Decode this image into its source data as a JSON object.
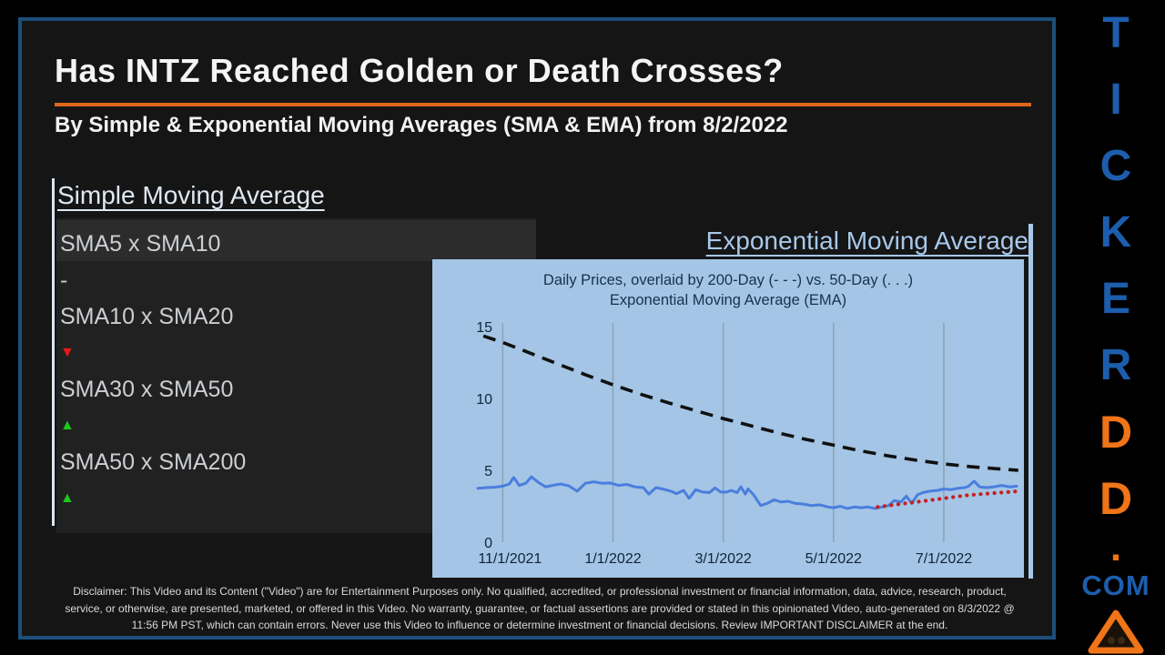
{
  "page": {
    "title": "Has INTZ Reached Golden or Death Crosses?",
    "subtitle": "By Simple & Exponential Moving Averages (SMA & EMA) from 8/2/2022"
  },
  "sma_section": {
    "heading": "Simple Moving Average",
    "items": [
      {
        "label": "SMA5 x SMA10",
        "signal": "neutral",
        "marker_glyph": "-",
        "marker_color": "#c8c8c8"
      },
      {
        "label": "SMA10 x SMA20",
        "signal": "down",
        "marker_glyph": "▼",
        "marker_color": "#e81818"
      },
      {
        "label": "SMA30 x SMA50",
        "signal": "up",
        "marker_glyph": "▲",
        "marker_color": "#1ec81e"
      },
      {
        "label": "SMA50 x SMA200",
        "signal": "up",
        "marker_glyph": "▲",
        "marker_color": "#1ec81e"
      }
    ]
  },
  "ema_section": {
    "heading": "Exponential Moving Average"
  },
  "chart_data": {
    "type": "line",
    "title_line1": "Daily Prices, overlaid by 200-Day (- - -) vs. 50-Day (. . .)",
    "title_line2": "Exponential Moving Average (EMA)",
    "background": "#a4c5e5",
    "grid": "vertical-only",
    "gridline_color": "#8da4ba",
    "x_unit": "months since 11/1/2021",
    "x_tick_months": [
      0,
      2,
      4,
      6,
      8
    ],
    "x_tick_labels": [
      "11/1/2021",
      "1/1/2022",
      "3/1/2022",
      "5/1/2022",
      "7/1/2022"
    ],
    "xlim": [
      -0.55,
      9.42
    ],
    "y_ticks": [
      0,
      5,
      10,
      15
    ],
    "ylim": [
      0,
      15
    ],
    "tick_color": "#10243a",
    "series": [
      {
        "name": "Daily Prices",
        "style": "solid",
        "color": "#4a7ede",
        "points": [
          [
            -0.45,
            3.75
          ],
          [
            -0.3,
            3.8
          ],
          [
            -0.15,
            3.82
          ],
          [
            0,
            3.9
          ],
          [
            0.12,
            4.05
          ],
          [
            0.2,
            4.5
          ],
          [
            0.3,
            3.95
          ],
          [
            0.42,
            4.1
          ],
          [
            0.52,
            4.55
          ],
          [
            0.65,
            4.15
          ],
          [
            0.78,
            3.85
          ],
          [
            0.9,
            3.95
          ],
          [
            1.05,
            4.05
          ],
          [
            1.2,
            3.92
          ],
          [
            1.35,
            3.55
          ],
          [
            1.5,
            4.1
          ],
          [
            1.65,
            4.2
          ],
          [
            1.8,
            4.1
          ],
          [
            1.95,
            4.12
          ],
          [
            2.1,
            3.95
          ],
          [
            2.25,
            4.02
          ],
          [
            2.4,
            3.85
          ],
          [
            2.55,
            3.8
          ],
          [
            2.65,
            3.35
          ],
          [
            2.78,
            3.8
          ],
          [
            2.9,
            3.7
          ],
          [
            3.05,
            3.55
          ],
          [
            3.15,
            3.38
          ],
          [
            3.28,
            3.6
          ],
          [
            3.38,
            3.05
          ],
          [
            3.5,
            3.65
          ],
          [
            3.62,
            3.5
          ],
          [
            3.75,
            3.45
          ],
          [
            3.85,
            3.78
          ],
          [
            3.95,
            3.5
          ],
          [
            4.05,
            3.48
          ],
          [
            4.15,
            3.6
          ],
          [
            4.25,
            3.45
          ],
          [
            4.32,
            3.85
          ],
          [
            4.4,
            3.35
          ],
          [
            4.45,
            3.7
          ],
          [
            4.55,
            3.3
          ],
          [
            4.68,
            2.55
          ],
          [
            4.8,
            2.7
          ],
          [
            4.92,
            2.95
          ],
          [
            5.05,
            2.8
          ],
          [
            5.18,
            2.85
          ],
          [
            5.3,
            2.7
          ],
          [
            5.45,
            2.65
          ],
          [
            5.6,
            2.55
          ],
          [
            5.75,
            2.6
          ],
          [
            5.9,
            2.45
          ],
          [
            6.0,
            2.4
          ],
          [
            6.12,
            2.5
          ],
          [
            6.25,
            2.35
          ],
          [
            6.38,
            2.45
          ],
          [
            6.5,
            2.4
          ],
          [
            6.62,
            2.45
          ],
          [
            6.75,
            2.35
          ],
          [
            6.88,
            2.45
          ],
          [
            7.0,
            2.55
          ],
          [
            7.1,
            2.9
          ],
          [
            7.22,
            2.8
          ],
          [
            7.32,
            3.2
          ],
          [
            7.42,
            2.7
          ],
          [
            7.52,
            3.3
          ],
          [
            7.62,
            3.45
          ],
          [
            7.75,
            3.55
          ],
          [
            7.88,
            3.6
          ],
          [
            8.0,
            3.7
          ],
          [
            8.12,
            3.65
          ],
          [
            8.25,
            3.75
          ],
          [
            8.38,
            3.8
          ],
          [
            8.45,
            3.9
          ],
          [
            8.55,
            4.25
          ],
          [
            8.65,
            3.85
          ],
          [
            8.78,
            3.8
          ],
          [
            8.9,
            3.85
          ],
          [
            9.05,
            3.95
          ],
          [
            9.2,
            3.85
          ],
          [
            9.32,
            3.9
          ]
        ]
      },
      {
        "name": "200-Day EMA",
        "style": "dashed",
        "color": "#101010",
        "points": [
          [
            -0.35,
            14.35
          ],
          [
            0,
            13.9
          ],
          [
            0.5,
            13.15
          ],
          [
            1,
            12.4
          ],
          [
            1.5,
            11.65
          ],
          [
            2,
            10.95
          ],
          [
            2.5,
            10.3
          ],
          [
            3,
            9.7
          ],
          [
            3.5,
            9.15
          ],
          [
            4,
            8.6
          ],
          [
            4.5,
            8.1
          ],
          [
            5,
            7.6
          ],
          [
            5.5,
            7.15
          ],
          [
            6,
            6.75
          ],
          [
            6.5,
            6.35
          ],
          [
            7,
            6.0
          ],
          [
            7.5,
            5.7
          ],
          [
            8,
            5.45
          ],
          [
            8.5,
            5.25
          ],
          [
            9.0,
            5.1
          ],
          [
            9.35,
            5.0
          ]
        ]
      },
      {
        "name": "50-Day EMA",
        "style": "dotted",
        "color": "#c42020",
        "points": [
          [
            6.8,
            2.45
          ],
          [
            7.0,
            2.55
          ],
          [
            7.2,
            2.65
          ],
          [
            7.4,
            2.75
          ],
          [
            7.6,
            2.85
          ],
          [
            7.8,
            2.95
          ],
          [
            8.0,
            3.05
          ],
          [
            8.2,
            3.15
          ],
          [
            8.4,
            3.25
          ],
          [
            8.6,
            3.32
          ],
          [
            8.8,
            3.38
          ],
          [
            9.0,
            3.44
          ],
          [
            9.2,
            3.5
          ],
          [
            9.37,
            3.55
          ]
        ]
      }
    ]
  },
  "branding": {
    "stack": [
      {
        "text": "T",
        "kind": "blue-letter"
      },
      {
        "text": "I",
        "kind": "blue-letter"
      },
      {
        "text": "C",
        "kind": "blue-letter"
      },
      {
        "text": "K",
        "kind": "blue-letter"
      },
      {
        "text": "E",
        "kind": "blue-letter"
      },
      {
        "text": "R",
        "kind": "blue-letter"
      },
      {
        "text": "D",
        "kind": "orange-letter"
      },
      {
        "text": "D",
        "kind": "orange-letter"
      },
      {
        "text": ".",
        "kind": "orange-dot"
      },
      {
        "text": "COM",
        "kind": "com"
      }
    ],
    "blue": "#1d5dad",
    "orange": "#f07418"
  },
  "disclaimer": "Disclaimer: This Video and its Content (\"Video\") are for Entertainment Purposes only. No qualified, accredited, or professional investment or financial information, data, advice, research, product, service, or otherwise, are presented, marketed, or offered in this Video. No warranty, guarantee, or factual assertions are provided or stated in this opinionated Video, auto-generated on 8/3/2022 @ 11:56 PM PST, which can contain errors. Never use this Video to influence or determine investment or financial decisions. Review IMPORTANT DISCLAIMER at the end.",
  "colors": {
    "frame_border": "#1c4e7a",
    "frame_bg": "#151515",
    "accent_orange": "#e0661c",
    "sma_heading": "#dfe8f2",
    "ema_heading": "#a8c8ea",
    "panel_bg": "#212121",
    "signal_up": "#1ec81e",
    "signal_down": "#e81818"
  }
}
